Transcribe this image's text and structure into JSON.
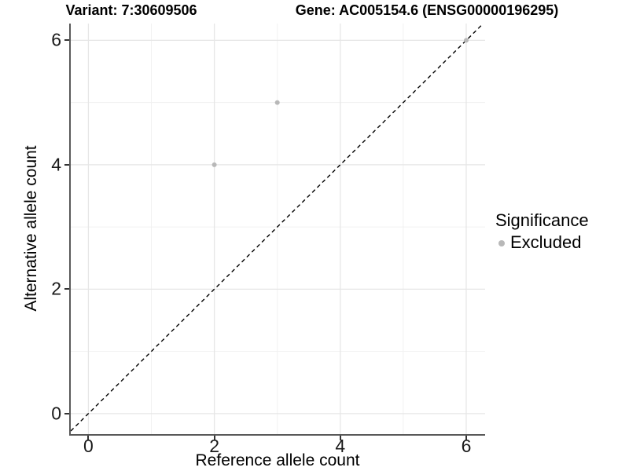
{
  "titles": {
    "left": "Variant: 7:30609506",
    "right": "Gene: AC005154.6 (ENSG00000196295)"
  },
  "chart_data": {
    "type": "scatter",
    "title": "Variant: 7:30609506 — Gene: AC005154.6 (ENSG00000196295)",
    "xlabel": "Reference allele count",
    "ylabel": "Alternative allele count",
    "xlim": [
      -0.28,
      6.3
    ],
    "ylim": [
      -0.33,
      6.27
    ],
    "x_ticks": [
      0,
      2,
      4,
      6
    ],
    "y_ticks": [
      0,
      2,
      4,
      6
    ],
    "x_minor_ticks": [
      1,
      3,
      5
    ],
    "y_minor_ticks": [
      1,
      3,
      5
    ],
    "grid": true,
    "series": [
      {
        "name": "Excluded",
        "marker": "circle",
        "color": "#b8b8b8",
        "points": [
          {
            "x": 2,
            "y": 4
          },
          {
            "x": 3,
            "y": 5
          },
          {
            "x": 6,
            "y": 6
          }
        ]
      }
    ],
    "reference_line": {
      "kind": "identity-diagonal",
      "slope": 1,
      "intercept": 0,
      "style": "dashed",
      "color": "#000000"
    },
    "legend": {
      "title": "Significance",
      "position": "right",
      "entries": [
        {
          "label": "Excluded",
          "color": "#b8b8b8",
          "marker": "circle"
        }
      ]
    }
  },
  "style_colors": {
    "background": "#ffffff",
    "grid_major": "#e6e6e6",
    "grid_minor": "#f1f1f1",
    "axis_line": "#595959",
    "tick_mark": "#333333",
    "tick_label": "#1a1a1a",
    "point": "#b8b8b8"
  }
}
